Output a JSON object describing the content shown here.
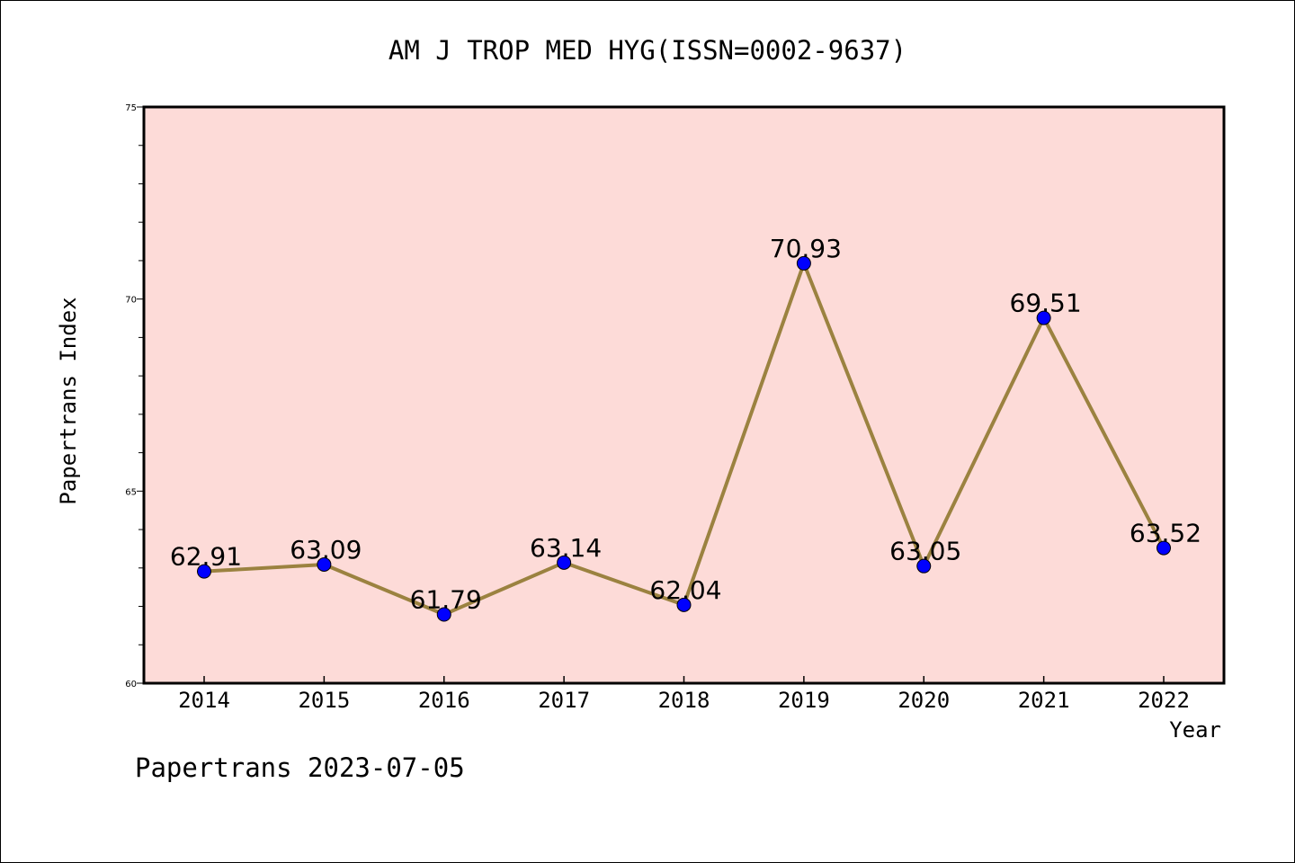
{
  "chart_data": {
    "type": "line",
    "title": "AM J TROP MED HYG(ISSN=0002-9637)",
    "xlabel": "Year",
    "ylabel": "Papertrans Index",
    "footer": "Papertrans 2023-07-05",
    "categories": [
      "2014",
      "2015",
      "2016",
      "2017",
      "2018",
      "2019",
      "2020",
      "2021",
      "2022"
    ],
    "series": [
      {
        "values": [
          62.91,
          63.09,
          61.79,
          63.14,
          62.04,
          70.93,
          63.05,
          69.51,
          63.52
        ],
        "labels": [
          "62.91",
          "63.09",
          "61.79",
          "63.14",
          "62.04",
          "70.93",
          "63.05",
          "69.51",
          "63.52"
        ]
      }
    ],
    "ylim": [
      60,
      75
    ],
    "yticks": [
      "60",
      "65",
      "70",
      "75"
    ],
    "grid": false,
    "colors": {
      "plot_background": "#fddbd8",
      "line": "#9b8240",
      "marker": "#0000ff"
    }
  }
}
